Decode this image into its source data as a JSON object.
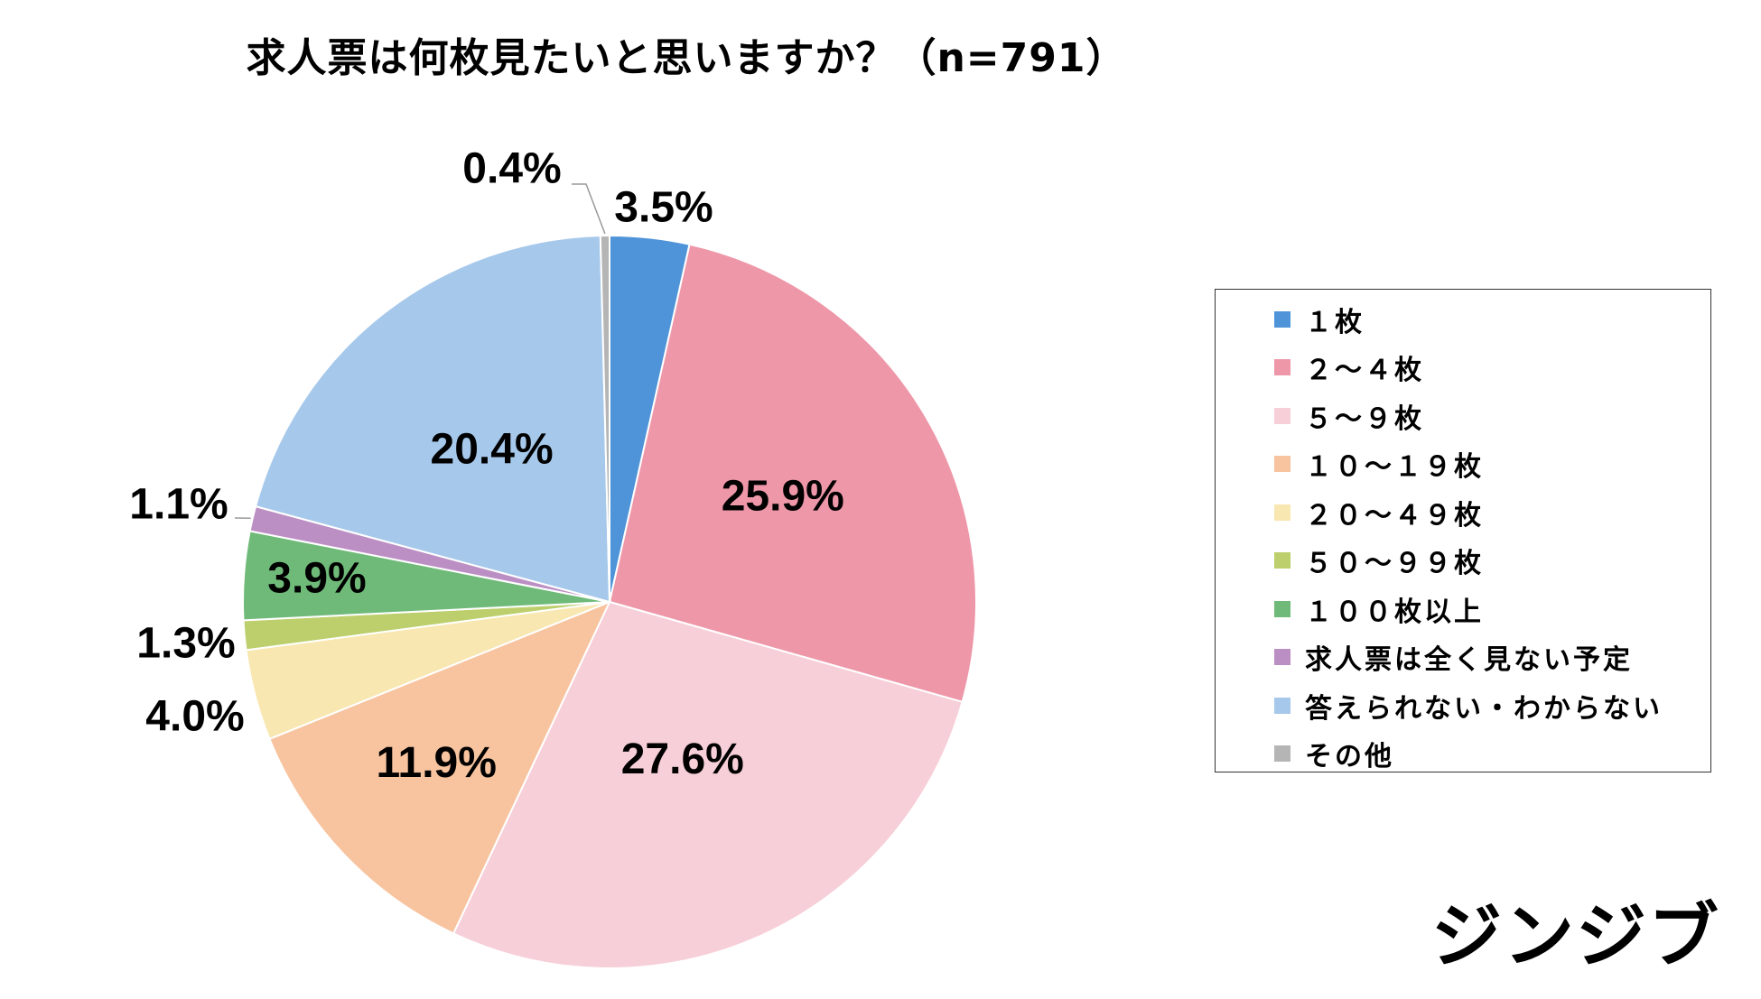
{
  "chart_data": {
    "type": "pie",
    "title": "求人票は何枚見たいと思いますか？（n=791）",
    "start_angle_deg": 0,
    "direction": "clockwise",
    "legend_position": "right",
    "slices": [
      {
        "label": "１枚",
        "value": 3.5,
        "display": "3.5%",
        "color": "#4f94d8"
      },
      {
        "label": "２～４枚",
        "value": 25.9,
        "display": "25.9%",
        "color": "#ee97a9"
      },
      {
        "label": "５～９枚",
        "value": 27.6,
        "display": "27.6%",
        "color": "#f7cfd8"
      },
      {
        "label": "１０～１９枚",
        "value": 11.9,
        "display": "11.9%",
        "color": "#f7c49f"
      },
      {
        "label": "２０～４９枚",
        "value": 4.0,
        "display": "4.0%",
        "color": "#f8e7b0"
      },
      {
        "label": "５０～９９枚",
        "value": 1.3,
        "display": "1.3%",
        "color": "#bccf6c"
      },
      {
        "label": "１００枚以上",
        "value": 3.9,
        "display": "3.9%",
        "color": "#6fba79"
      },
      {
        "label": "求人票は全く見ない予定",
        "value": 1.1,
        "display": "1.1%",
        "color": "#bb8fc4"
      },
      {
        "label": "答えられない・わからない",
        "value": 20.4,
        "display": "20.4%",
        "color": "#a6c8eb"
      },
      {
        "label": "その他",
        "value": 0.4,
        "display": "0.4%",
        "color": "#b5b5b5"
      }
    ]
  },
  "brand": "ジンジブ"
}
